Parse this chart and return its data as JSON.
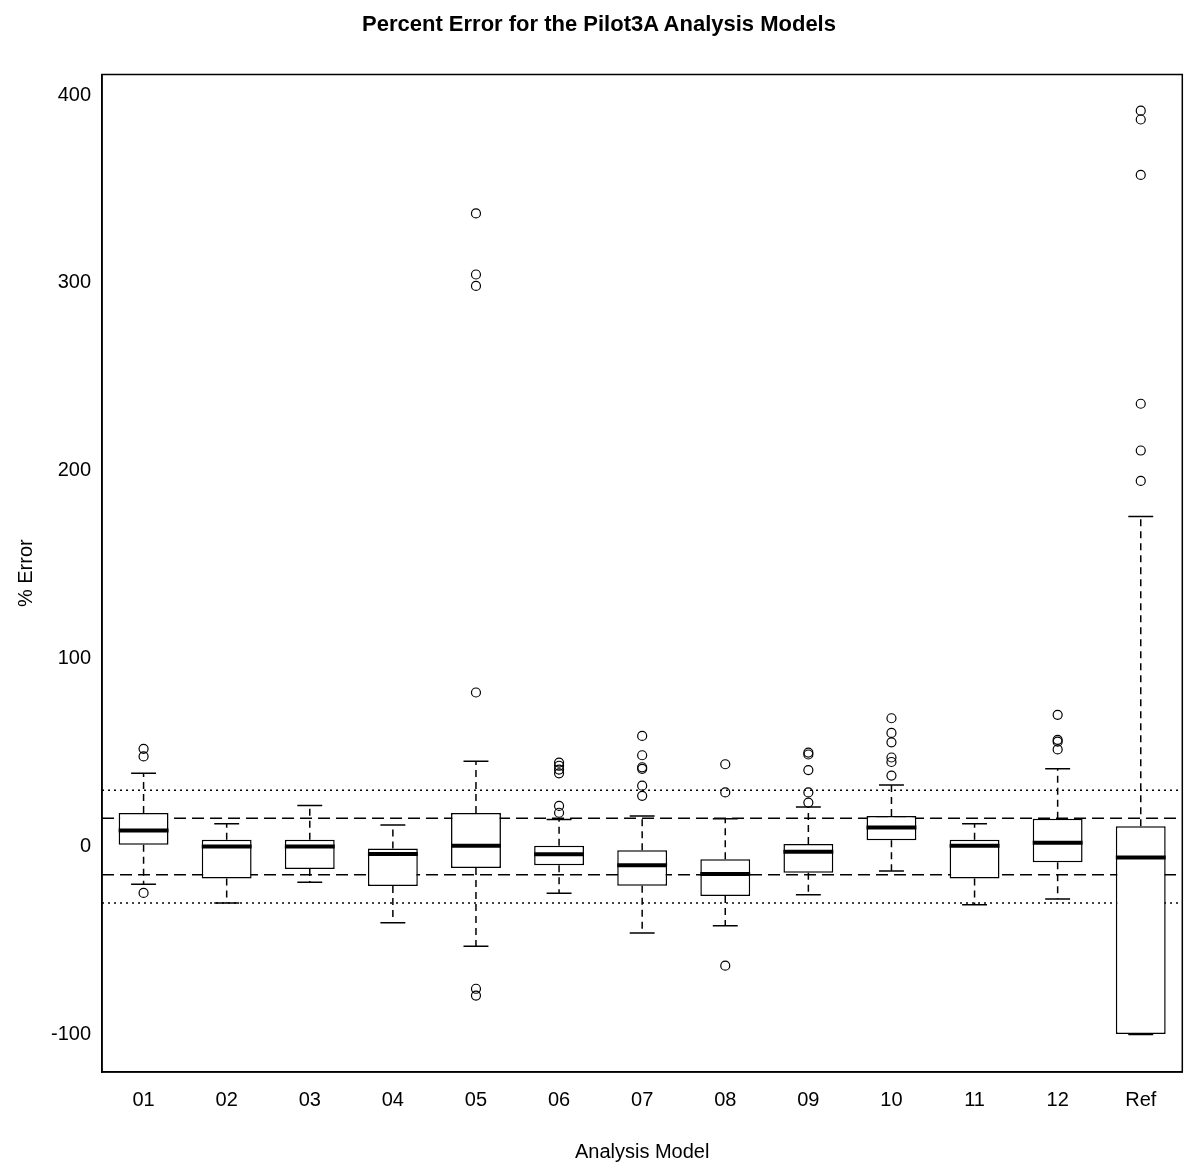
{
  "chart_data": {
    "type": "box",
    "title": "Percent Error for the Pilot3A Analysis Models",
    "xlabel": "Analysis Model",
    "ylabel": "% Error",
    "categories": [
      "01",
      "02",
      "03",
      "04",
      "05",
      "06",
      "07",
      "08",
      "09",
      "10",
      "11",
      "12",
      "Ref"
    ],
    "boxes": [
      {
        "low": -20,
        "q1": 1,
        "median": 8.5,
        "q3": 17.8,
        "high": 39,
        "outliers": [
          52,
          48,
          -24.7
        ]
      },
      {
        "low": -30,
        "q1": -17,
        "median": 0,
        "q3": 3.6,
        "high": 12.2
      },
      {
        "low": -19,
        "q1": -12,
        "median": 0,
        "q3": 3.6,
        "high": 21.8
      },
      {
        "low": -40.5,
        "q1": -21,
        "median": -4,
        "q3": -1,
        "high": 11.5
      },
      {
        "low": -53,
        "q1": -11.4,
        "median": 0.4,
        "q3": 17.8,
        "high": 45.4,
        "outliers": [
          337,
          304.5,
          298.4,
          82,
          -75.7,
          -79.3
        ]
      },
      {
        "low": -24.9,
        "q1": -9.9,
        "median": -4.1,
        "q3": 0.4,
        "high": 14.4,
        "outliers": [
          44.7,
          43,
          41,
          39,
          21.6,
          18
        ]
      },
      {
        "low": -46,
        "q1": -20.9,
        "median": -9.9,
        "q3": -2,
        "high": 16.2,
        "outliers": [
          58.9,
          48.6,
          42.2,
          41.4,
          32.4,
          27
        ]
      },
      {
        "low": -42.2,
        "q1": -26.3,
        "median": -14.6,
        "q3": -6.7,
        "high": 14.8,
        "outliers": [
          43.8,
          28.8,
          -63.4
        ]
      },
      {
        "low": -25.6,
        "q1": -13.9,
        "median": -2.7,
        "q3": 1.3,
        "high": 21,
        "outliers": [
          50,
          49,
          40.7,
          28.8,
          23.4
        ]
      },
      {
        "low": -13,
        "q1": 3.4,
        "median": 10.1,
        "q3": 16.2,
        "high": 32.8,
        "outliers": [
          68.3,
          60.5,
          55.5,
          47.4,
          45,
          37.8
        ]
      },
      {
        "low": -31,
        "q1": -17,
        "median": 0.4,
        "q3": 3.6,
        "high": 12.2
      },
      {
        "low": -27.9,
        "q1": -8.3,
        "median": 2,
        "q3": 14.8,
        "high": 41.4,
        "outliers": [
          70.1,
          56.8,
          55.8,
          51.7
        ]
      },
      {
        "low": -100,
        "q1": -99.8,
        "median": -5.8,
        "q3": 10.8,
        "high": 175.7,
        "outliers": [
          391.7,
          387,
          357.5,
          235.7,
          210.8,
          194.6
        ]
      }
    ],
    "ylim": [
      -120,
      411
    ],
    "yticks": [
      -100,
      0,
      100,
      200,
      300,
      400
    ],
    "grid": false,
    "ref_lines": [
      {
        "axis": "y",
        "value": 30,
        "line_style": "dotted",
        "color": "#000000"
      },
      {
        "axis": "y",
        "value": 15,
        "line_style": "dashed",
        "color": "#000000"
      },
      {
        "axis": "y",
        "value": -15,
        "line_style": "dashed",
        "color": "#000000"
      },
      {
        "axis": "y",
        "value": -30,
        "line_style": "dotted",
        "color": "#000000"
      }
    ]
  }
}
